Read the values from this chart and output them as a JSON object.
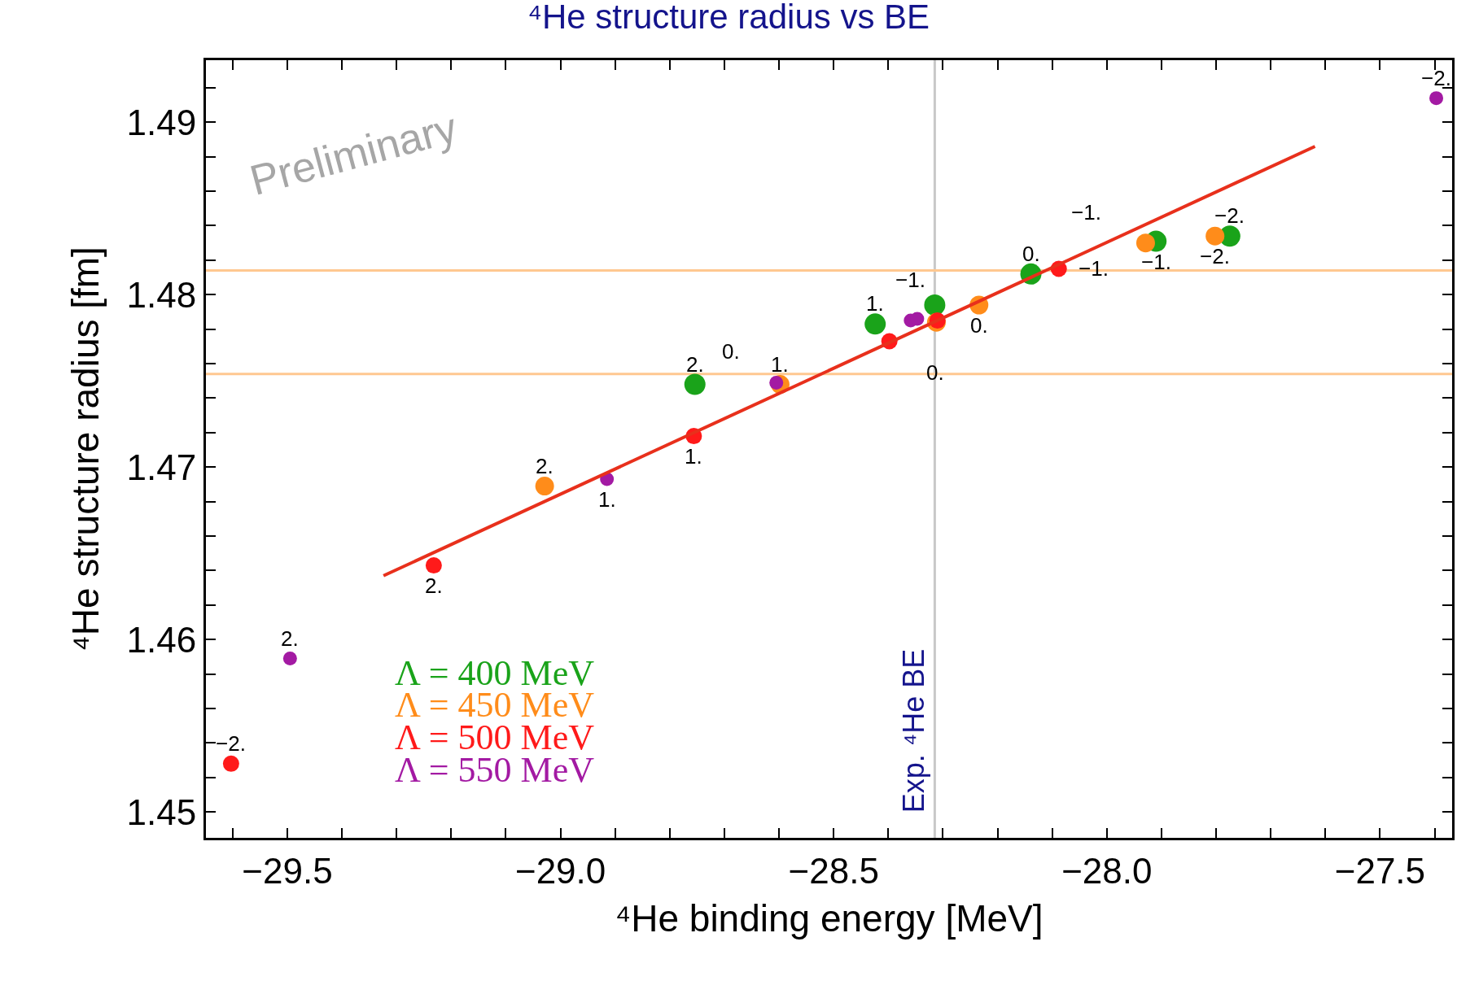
{
  "chart_data": {
    "type": "scatter",
    "title": "⁴He structure radius vs BE",
    "xlabel": "⁴He binding energy [MeV]",
    "ylabel": "⁴He structure radius [fm]",
    "series": [
      {
        "name": "Λ = 400 MeV",
        "color": "#1aa31a",
        "x": [
          -28.754,
          -28.424,
          -28.315,
          -28.139,
          -27.91,
          -27.775
        ],
        "values": [
          1.4748,
          1.4783,
          1.4794,
          1.4812,
          1.4831,
          1.4834
        ]
      },
      {
        "name": "Λ = 450 MeV",
        "color": "#ff8c1a",
        "x": [
          -29.029,
          -28.598,
          -28.312,
          -28.234,
          -27.929,
          -27.802
        ],
        "values": [
          1.4689,
          1.4748,
          1.4784,
          1.4794,
          1.483,
          1.4834
        ]
      },
      {
        "name": "Λ = 500 MeV",
        "color": "#ff1a1a",
        "x": [
          -29.603,
          -29.232,
          -28.756,
          -28.398,
          -28.31,
          -28.088
        ],
        "values": [
          1.4528,
          1.4643,
          1.4718,
          1.4773,
          1.4785,
          1.4815
        ]
      },
      {
        "name": "Λ = 550 MeV",
        "color": "#a31aa3",
        "x": [
          -29.495,
          -28.915,
          -28.605,
          -28.359,
          -28.347,
          -27.397
        ],
        "values": [
          1.4589,
          1.4693,
          1.4749,
          1.4785,
          1.4786,
          1.4914
        ]
      },
      {
        "type": "line",
        "color": "#e8301c",
        "x": [
          -29.324,
          -27.619
        ],
        "values": [
          1.4637,
          1.4886
        ],
        "marker": "none"
      }
    ],
    "marker": "circle",
    "xlim": [
      -29.649,
      -27.368
    ],
    "ylim": [
      1.4485,
      1.4936
    ],
    "xticks": [
      {
        "value": -29.6,
        "label": null
      },
      {
        "value": -29.5,
        "label": "−29.5"
      },
      {
        "value": -29.4,
        "label": null
      },
      {
        "value": -29.3,
        "label": null
      },
      {
        "value": -29.2,
        "label": null
      },
      {
        "value": -29.1,
        "label": null
      },
      {
        "value": -29.0,
        "label": "−29.0"
      },
      {
        "value": -28.9,
        "label": null
      },
      {
        "value": -28.8,
        "label": null
      },
      {
        "value": -28.7,
        "label": null
      },
      {
        "value": -28.6,
        "label": null
      },
      {
        "value": -28.5,
        "label": "−28.5"
      },
      {
        "value": -28.4,
        "label": null
      },
      {
        "value": -28.3,
        "label": null
      },
      {
        "value": -28.2,
        "label": null
      },
      {
        "value": -28.1,
        "label": null
      },
      {
        "value": -28.0,
        "label": "−28.0"
      },
      {
        "value": -27.9,
        "label": null
      },
      {
        "value": -27.8,
        "label": null
      },
      {
        "value": -27.7,
        "label": null
      },
      {
        "value": -27.6,
        "label": null
      },
      {
        "value": -27.5,
        "label": "−27.5"
      },
      {
        "value": -27.4,
        "label": null
      }
    ],
    "yticks": [
      {
        "value": 1.45,
        "label": "1.45"
      },
      {
        "value": 1.452,
        "label": null
      },
      {
        "value": 1.454,
        "label": null
      },
      {
        "value": 1.456,
        "label": null
      },
      {
        "value": 1.458,
        "label": null
      },
      {
        "value": 1.46,
        "label": "1.46"
      },
      {
        "value": 1.462,
        "label": null
      },
      {
        "value": 1.464,
        "label": null
      },
      {
        "value": 1.466,
        "label": null
      },
      {
        "value": 1.468,
        "label": null
      },
      {
        "value": 1.47,
        "label": "1.47"
      },
      {
        "value": 1.472,
        "label": null
      },
      {
        "value": 1.474,
        "label": null
      },
      {
        "value": 1.476,
        "label": null
      },
      {
        "value": 1.478,
        "label": null
      },
      {
        "value": 1.48,
        "label": "1.48"
      },
      {
        "value": 1.482,
        "label": null
      },
      {
        "value": 1.484,
        "label": null
      },
      {
        "value": 1.486,
        "label": null
      },
      {
        "value": 1.488,
        "label": null
      },
      {
        "value": 1.49,
        "label": "1.49"
      },
      {
        "value": 1.492,
        "label": null
      }
    ],
    "ref_lines": [
      {
        "axis": "x",
        "value": -28.315,
        "label": "Exp. ⁴He BE",
        "color": "#c8c8c8"
      },
      {
        "axis": "y",
        "value": 1.4814,
        "color": "#ffc890"
      },
      {
        "axis": "y",
        "value": 1.4754,
        "color": "#ffc890"
      }
    ],
    "legend": "bottom left",
    "grid": false,
    "annotations": [
      "Preliminary",
      {
        "text": "2.",
        "x": -28.754,
        "y": 1.4748
      },
      {
        "text": "1.",
        "x": -28.424,
        "y": 1.4783
      },
      {
        "text": "0.",
        "x": -28.139,
        "y": 1.4812
      },
      {
        "text": "−1.",
        "x": -27.91,
        "y": 1.4831
      },
      {
        "text": "−2.",
        "x": -27.775,
        "y": 1.4834
      },
      {
        "text": "2.",
        "x": -29.029,
        "y": 1.4689
      },
      {
        "text": "1.",
        "x": -28.598,
        "y": 1.4748
      },
      {
        "text": "0.",
        "x": -28.234,
        "y": 1.4794
      },
      {
        "text": "−1.",
        "x": -27.929,
        "y": 1.483
      },
      {
        "text": "−2.",
        "x": -27.802,
        "y": 1.4834
      },
      {
        "text": "−2.",
        "x": -29.603,
        "y": 1.4528
      },
      {
        "text": "2.",
        "x": -29.232,
        "y": 1.4643
      },
      {
        "text": "1.",
        "x": -28.756,
        "y": 1.4718
      },
      {
        "text": "0.",
        "x": -28.398,
        "y": 1.4773
      },
      {
        "text": "−1.",
        "x": -28.088,
        "y": 1.4815
      },
      {
        "text": "2.",
        "x": -29.495,
        "y": 1.4589
      },
      {
        "text": "1.",
        "x": -28.915,
        "y": 1.4693
      },
      {
        "text": "0.",
        "x": -28.605,
        "y": 1.4749
      },
      {
        "text": "−1.",
        "x": -28.359,
        "y": 1.4785
      },
      {
        "text": "−2.",
        "x": -27.397,
        "y": 1.4914
      }
    ]
  }
}
